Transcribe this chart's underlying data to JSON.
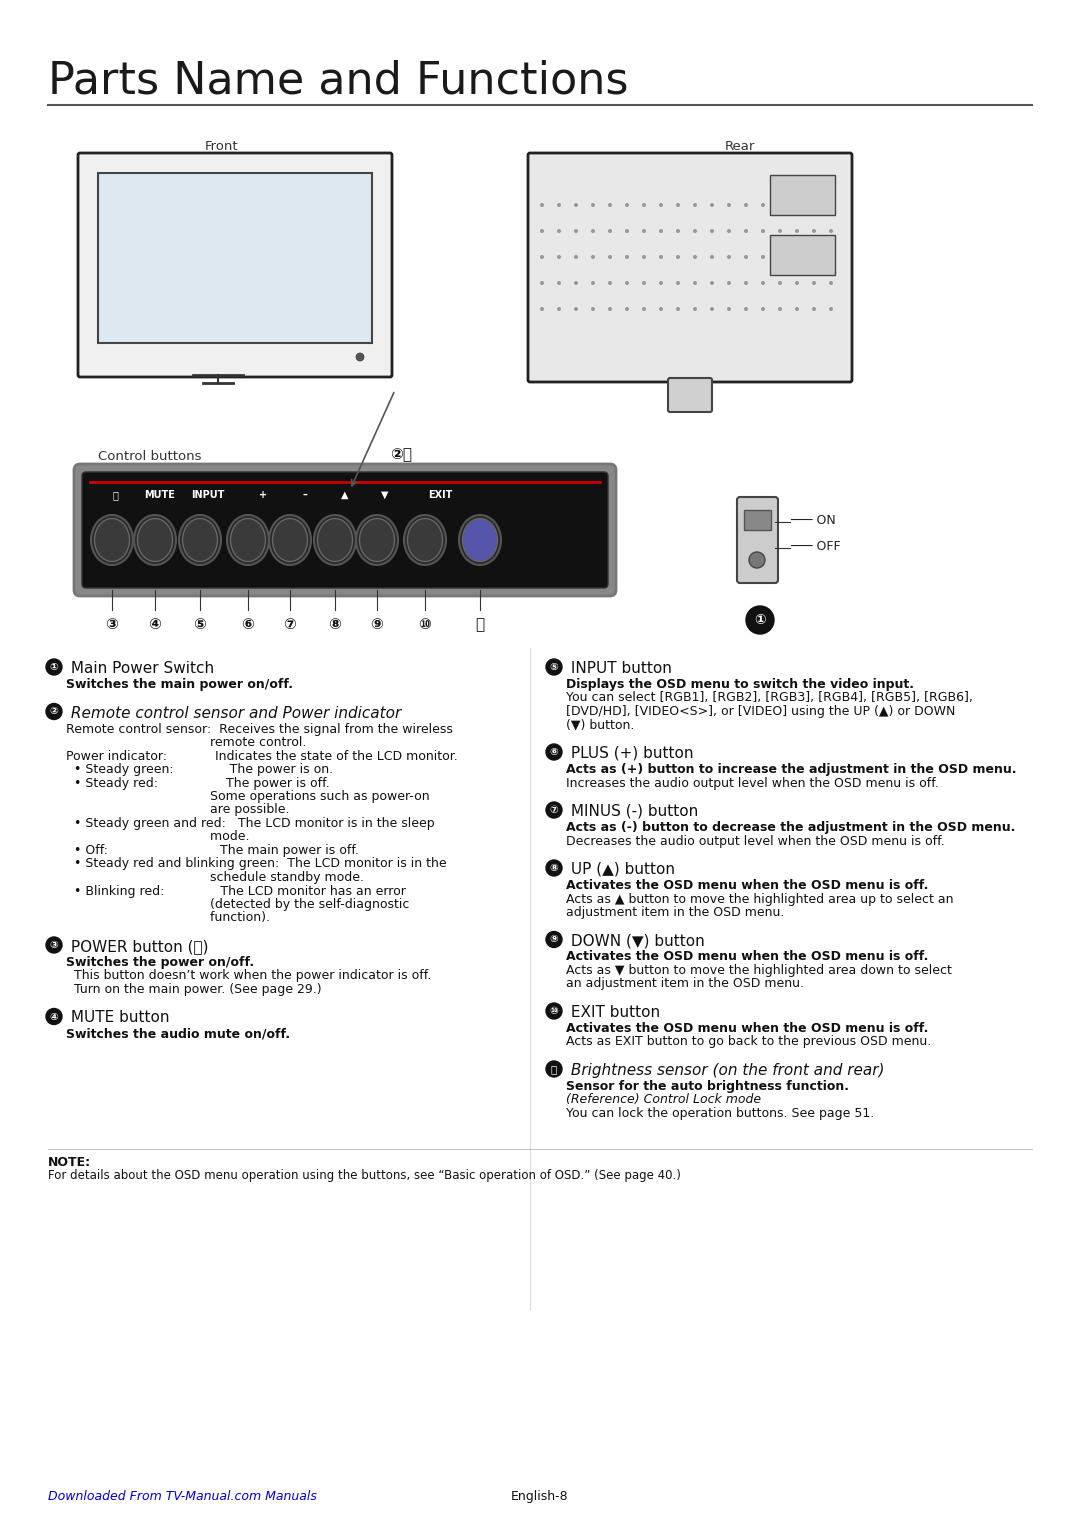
{
  "title": "Parts Name and Functions",
  "bg_color": "#ffffff",
  "text_color": "#000000",
  "title_fontsize": 32,
  "body_fontsize": 9,
  "sections_left": [
    {
      "number": "①",
      "heading": "Main Power Switch",
      "heading_style": "mixed",
      "lines": [
        {
          "text": "Switches the main power on/off.",
          "bold": true,
          "indent": 0
        }
      ]
    },
    {
      "number": "②",
      "heading": "Remote control sensor and Power indicator",
      "heading_style": "mixed",
      "lines": [
        {
          "text": "Remote control sensor:  Receives the signal from the wireless",
          "bold": false,
          "indent": 0
        },
        {
          "text": "remote control.",
          "bold": false,
          "indent": 1
        },
        {
          "text": "Power indicator:          Indicates the state of the LCD monitor.",
          "bold": false,
          "indent": 0
        },
        {
          "text": "• Steady green:            The power is on.",
          "bold": false,
          "indent": 0
        },
        {
          "text": "• Steady red:               The power is off.",
          "bold": false,
          "indent": 0
        },
        {
          "text": "Some operations such as power-on",
          "bold": false,
          "indent": 1
        },
        {
          "text": "are possible.",
          "bold": false,
          "indent": 1
        },
        {
          "text": "• Steady green and red:  The LCD monitor is in the sleep",
          "bold": false,
          "indent": 0
        },
        {
          "text": "mode.",
          "bold": false,
          "indent": 1
        },
        {
          "text": "• Off:                           The main power is off.",
          "bold": false,
          "indent": 0
        },
        {
          "text": "• Steady red and blinking green:  The LCD monitor is in the",
          "bold": false,
          "indent": 0
        },
        {
          "text": "schedule standby mode.",
          "bold": false,
          "indent": 1
        },
        {
          "text": "• Blinking red:             The LCD monitor has an error",
          "bold": false,
          "indent": 0
        },
        {
          "text": "(detected by the self-diagnostic",
          "bold": false,
          "indent": 1
        },
        {
          "text": "function).",
          "bold": false,
          "indent": 1
        }
      ]
    },
    {
      "number": "③",
      "heading": "POWER button (⏻)",
      "heading_style": "mixed",
      "lines": [
        {
          "text": "Switches the power on/off.",
          "bold": true,
          "indent": 0
        },
        {
          "text": "  This button doesn’t work when the power indicator is off.",
          "bold": false,
          "indent": 0
        },
        {
          "text": "  Turn on the main power. (See page 29.)",
          "bold": false,
          "indent": 0
        }
      ]
    },
    {
      "number": "④",
      "heading": "MUTE button",
      "heading_style": "mixed",
      "lines": [
        {
          "text": "Switches the audio mute on/off.",
          "bold": true,
          "indent": 0
        }
      ]
    }
  ],
  "sections_right": [
    {
      "number": "⑤",
      "heading": "INPUT button",
      "heading_style": "mixed",
      "lines": [
        {
          "text": "Displays the OSD menu to switch the video input.",
          "bold": true,
          "indent": 0
        },
        {
          "text": "You can select [RGB1], [RGB2], [RGB3], [RGB4], [RGB5], [RGB6],",
          "bold": false,
          "indent": 0
        },
        {
          "text": "[DVD/HD], [VIDEO<S>], or [VIDEO] using the UP (▲) or DOWN",
          "bold": false,
          "indent": 0
        },
        {
          "text": "(▼) button.",
          "bold": false,
          "indent": 0
        }
      ]
    },
    {
      "number": "⑥",
      "heading": "PLUS (+) button",
      "heading_style": "mixed",
      "lines": [
        {
          "text": "Acts as (+) button to increase the adjustment in the OSD menu.",
          "bold": true,
          "indent": 0
        },
        {
          "text": "Increases the audio output level when the OSD menu is off.",
          "bold": false,
          "indent": 0
        }
      ]
    },
    {
      "number": "⑦",
      "heading": "MINUS (-) button",
      "heading_style": "mixed",
      "lines": [
        {
          "text": "Acts as (-) button to decrease the adjustment in the OSD menu.",
          "bold": true,
          "indent": 0
        },
        {
          "text": "Decreases the audio output level when the OSD menu is off.",
          "bold": false,
          "indent": 0
        }
      ]
    },
    {
      "number": "⑧",
      "heading": "UP (▲) button",
      "heading_style": "mixed",
      "lines": [
        {
          "text": "Activates the OSD menu when the OSD menu is off.",
          "bold": true,
          "indent": 0
        },
        {
          "text": "Acts as ▲ button to move the highlighted area up to select an",
          "bold": false,
          "indent": 0
        },
        {
          "text": "adjustment item in the OSD menu.",
          "bold": false,
          "indent": 0
        }
      ]
    },
    {
      "number": "⑨",
      "heading": "DOWN (▼) button",
      "heading_style": "mixed",
      "lines": [
        {
          "text": "Activates the OSD menu when the OSD menu is off.",
          "bold": true,
          "indent": 0
        },
        {
          "text": "Acts as ▼ button to move the highlighted area down to select",
          "bold": false,
          "indent": 0
        },
        {
          "text": "an adjustment item in the OSD menu.",
          "bold": false,
          "indent": 0
        }
      ]
    },
    {
      "number": "⑩",
      "heading": "EXIT button",
      "heading_style": "mixed",
      "lines": [
        {
          "text": "Activates the OSD menu when the OSD menu is off.",
          "bold": true,
          "indent": 0
        },
        {
          "text": "Acts as EXIT button to go back to the previous OSD menu.",
          "bold": false,
          "indent": 0
        }
      ]
    },
    {
      "number": "⑪",
      "heading": "Brightness sensor (on the front and rear)",
      "heading_style": "mixed",
      "lines": [
        {
          "text": "Sensor for the auto brightness function.",
          "bold": true,
          "indent": 0
        },
        {
          "text": "(Reference) Control Lock mode",
          "bold": false,
          "is_ref": true,
          "indent": 0
        },
        {
          "text": "You can lock the operation buttons. See page 51.",
          "bold": false,
          "indent": 0
        }
      ]
    }
  ],
  "note_text": "NOTE:\nFor details about the OSD menu operation using the buttons, see “Basic operation of OSD.” (See page 40.)",
  "footer_left": "Downloaded From TV-Manual.com Manuals",
  "footer_right": "English-8"
}
